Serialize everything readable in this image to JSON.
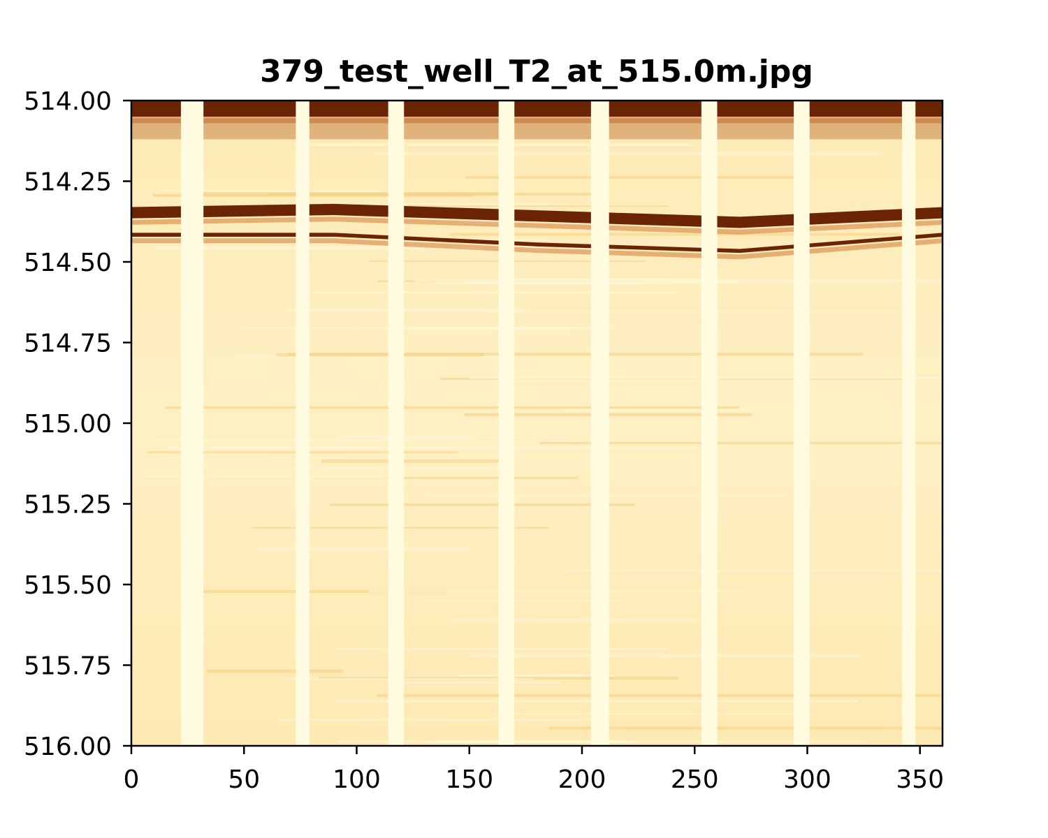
{
  "chart_data": {
    "type": "heatmap",
    "title": "379_test_well_T2_at_515.0m.jpg",
    "xlabel": "",
    "ylabel": "",
    "xlim": [
      0,
      360
    ],
    "ylim": [
      514.0,
      516.0
    ],
    "y_inverted": true,
    "colormap": "YlOrBr",
    "colors": {
      "high": "#6b2505",
      "mid": "#c8641a",
      "low": "#fde9b0",
      "pad": "#fffbe0"
    },
    "xticks": [
      0,
      50,
      100,
      150,
      200,
      250,
      300,
      350
    ],
    "xtick_labels": [
      "0",
      "50",
      "100",
      "150",
      "200",
      "250",
      "300",
      "350"
    ],
    "yticks": [
      514.0,
      514.25,
      514.5,
      514.75,
      515.0,
      515.25,
      515.5,
      515.75,
      516.0
    ],
    "ytick_labels": [
      "514.00",
      "514.25",
      "514.50",
      "514.75",
      "515.00",
      "515.25",
      "515.50",
      "515.75",
      "516.00"
    ],
    "pad_columns": [
      {
        "x_start": 22,
        "x_end": 32
      },
      {
        "x_start": 73,
        "x_end": 79
      },
      {
        "x_start": 114,
        "x_end": 121
      },
      {
        "x_start": 163,
        "x_end": 170
      },
      {
        "x_start": 204,
        "x_end": 212
      },
      {
        "x_start": 253,
        "x_end": 260
      },
      {
        "x_start": 294,
        "x_end": 301
      },
      {
        "x_start": 342,
        "x_end": 348
      }
    ],
    "dark_bands": [
      {
        "name": "top-zone",
        "points": [
          [
            0,
            514.0
          ],
          [
            90,
            514.0
          ],
          [
            180,
            514.0
          ],
          [
            270,
            514.0
          ],
          [
            360,
            514.0
          ]
        ],
        "thickness": 0.05
      },
      {
        "name": "band-a",
        "points": [
          [
            0,
            514.33
          ],
          [
            90,
            514.32
          ],
          [
            180,
            514.34
          ],
          [
            270,
            514.36
          ],
          [
            360,
            514.33
          ]
        ],
        "thickness": 0.035
      },
      {
        "name": "band-b",
        "points": [
          [
            0,
            514.41
          ],
          [
            90,
            514.41
          ],
          [
            180,
            514.44
          ],
          [
            270,
            514.46
          ],
          [
            360,
            514.41
          ]
        ],
        "thickness": 0.012
      }
    ]
  }
}
